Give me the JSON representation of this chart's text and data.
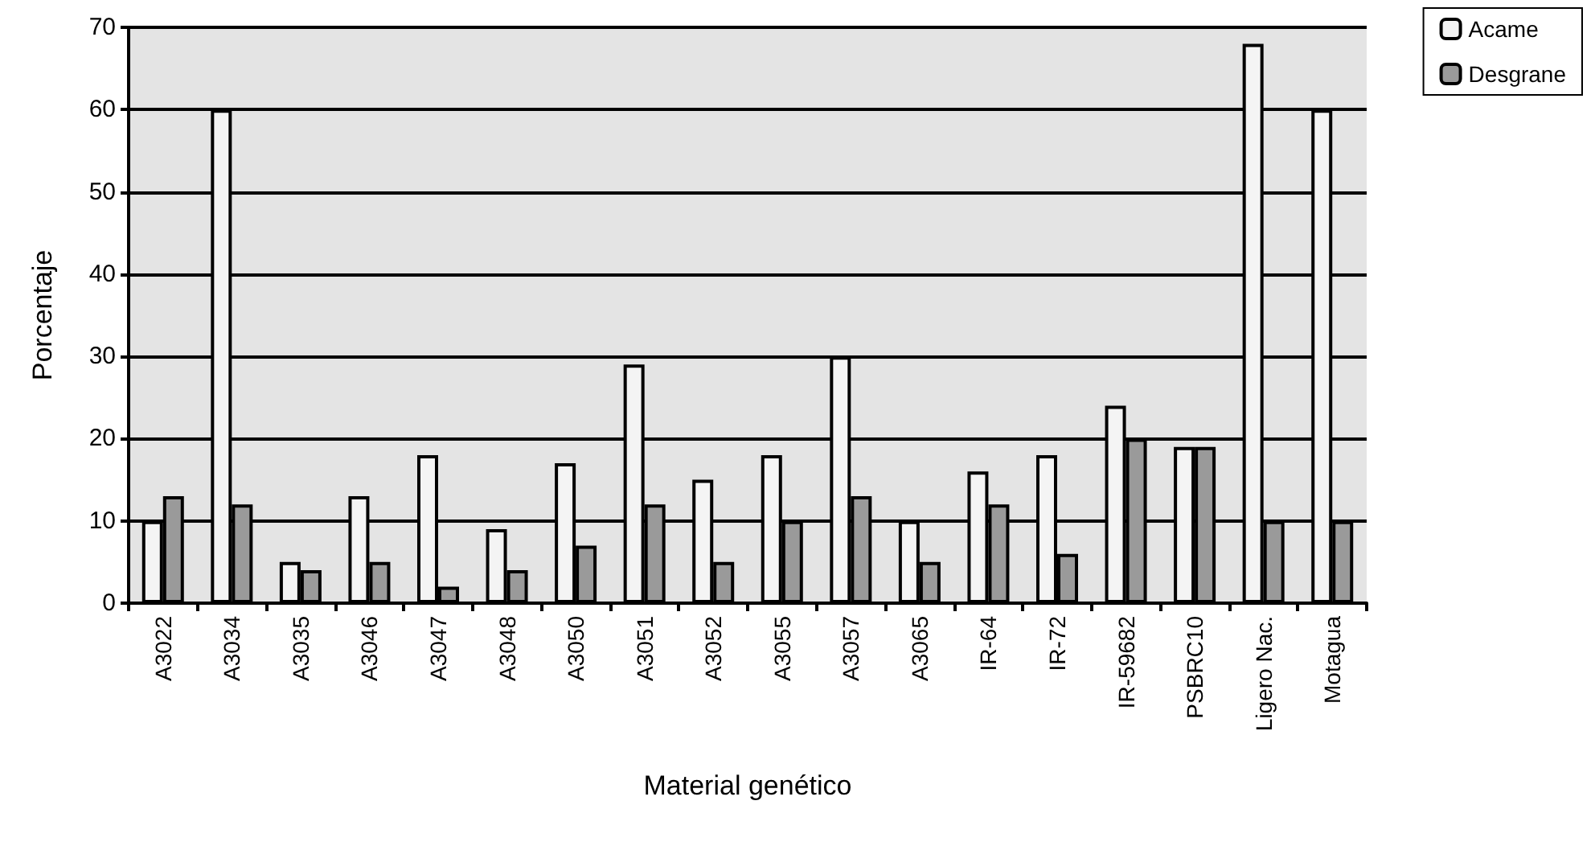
{
  "chart_data": {
    "type": "bar",
    "xlabel": "Material genético",
    "ylabel": "Porcentaje",
    "categories": [
      "A3022",
      "A3034",
      "A3035",
      "A3046",
      "A3047",
      "A3048",
      "A3050",
      "A3051",
      "A3052",
      "A3055",
      "A3057",
      "A3065",
      "IR-64",
      "IR-72",
      "IR-59682",
      "PSBRC10",
      "Ligero Nac.",
      "Motagua"
    ],
    "series": [
      {
        "name": "Acame",
        "color": "#f4f4f4",
        "values": [
          10,
          60,
          5,
          13,
          18,
          9,
          17,
          29,
          15,
          18,
          30,
          10,
          16,
          18,
          24,
          19,
          68,
          60
        ]
      },
      {
        "name": "Desgrane",
        "color": "#9a9a9a",
        "values": [
          13,
          12,
          4,
          5,
          2,
          4,
          7,
          12,
          5,
          10,
          13,
          5,
          12,
          6,
          20,
          19,
          10,
          10
        ]
      }
    ],
    "ylim": [
      0,
      70
    ],
    "yticks": [
      0,
      10,
      20,
      30,
      40,
      50,
      60,
      70
    ],
    "grid": "y",
    "legend": "top right"
  }
}
